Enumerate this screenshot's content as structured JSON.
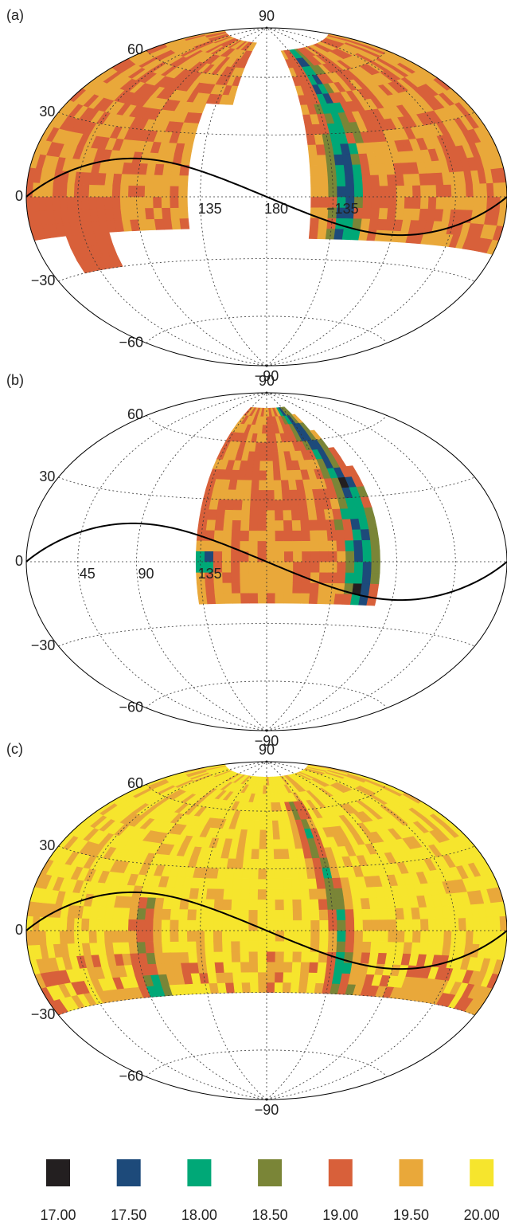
{
  "chart_data": [
    {
      "type": "map",
      "label": "(a)",
      "lat_ticks": [
        90,
        60,
        30,
        0,
        {
          "value": -30,
          "label": "−30"
        },
        {
          "value": -60,
          "label": "−60"
        },
        {
          "value": -90,
          "label": "−90"
        }
      ],
      "lon_ticks": [
        135,
        180,
        {
          "value": -135,
          "label": "−135"
        }
      ]
    },
    {
      "type": "map",
      "label": "(b)",
      "lat_ticks": [
        90,
        60,
        30,
        0,
        {
          "value": -30,
          "label": "−30"
        },
        {
          "value": -60,
          "label": "−60"
        },
        {
          "value": -90,
          "label": "−90"
        }
      ],
      "lon_ticks": [
        45,
        90,
        135
      ]
    },
    {
      "type": "map",
      "label": "(c)",
      "lat_ticks": [
        90,
        60,
        30,
        0,
        {
          "value": -30,
          "label": "−30"
        },
        {
          "value": -60,
          "label": "−60"
        },
        {
          "value": -90,
          "label": "−90"
        }
      ]
    }
  ],
  "legend": {
    "colors": [
      "#231f20",
      "#1d4a7a",
      "#00a877",
      "#7a8537",
      "#d8603a",
      "#e9a83a",
      "#f6e52d"
    ],
    "ticks": [
      {
        "value": 17,
        "label": "17.00"
      },
      {
        "value": 17.5,
        "label": "17.50"
      },
      {
        "value": 18,
        "label": "18.00"
      },
      {
        "value": 18.5,
        "label": "18.50"
      },
      {
        "value": 19,
        "label": "19.00"
      },
      {
        "value": 19.5,
        "label": "19.50"
      },
      {
        "value": 20,
        "label": "20.00"
      }
    ]
  }
}
